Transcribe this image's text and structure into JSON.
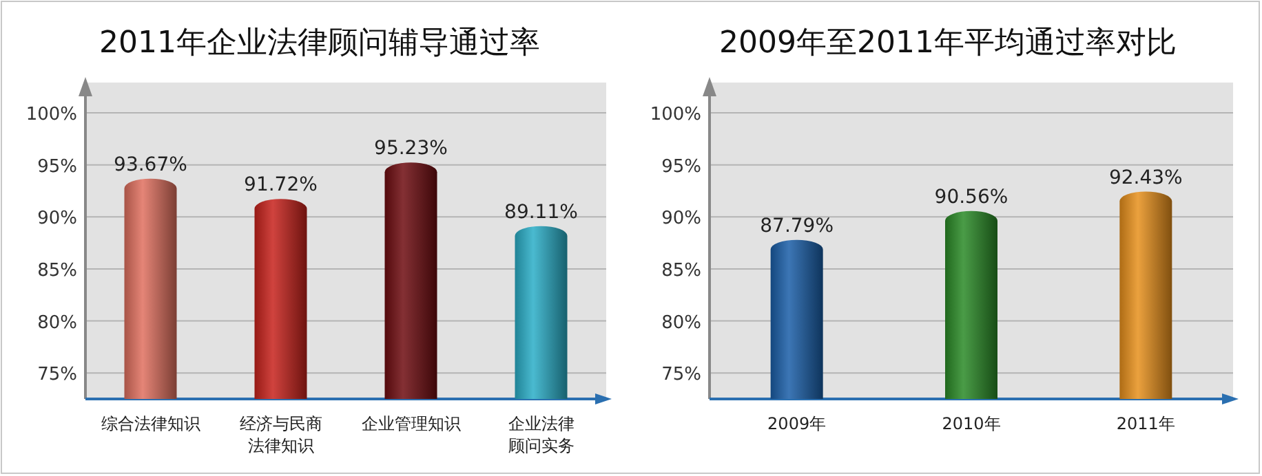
{
  "chart_data": [
    {
      "type": "bar",
      "title": "2011年企业法律顾问辅导通过率",
      "categories": [
        "综合法律知识",
        "经济与民商法律知识",
        "企业管理知识",
        "企业法律顾问实务"
      ],
      "values": [
        93.67,
        91.72,
        95.23,
        89.11
      ],
      "colors": [
        "#e0705f",
        "#c8221c",
        "#6e0c10",
        "#2aaec8"
      ],
      "value_labels": [
        "93.67%",
        "91.72%",
        "95.23%",
        "89.11%"
      ],
      "ylim": [
        72.5,
        100
      ],
      "yticks": [
        {
          "value": 75,
          "label": "75%"
        },
        {
          "value": 80,
          "label": "80%"
        },
        {
          "value": 85,
          "label": "85%"
        },
        {
          "value": 90,
          "label": "90%"
        },
        {
          "value": 95,
          "label": "95%"
        },
        {
          "value": 100,
          "label": "100%"
        }
      ],
      "grid": "y"
    },
    {
      "type": "bar",
      "title": "2009年至2011年平均通过率对比",
      "categories": [
        "2009年",
        "2010年",
        "2011年"
      ],
      "values": [
        87.79,
        90.56,
        92.43
      ],
      "colors": [
        "#1a5ea8",
        "#2a8a26",
        "#e8901c"
      ],
      "value_labels": [
        "87.79%",
        "90.56%",
        "92.43%"
      ],
      "ylim": [
        72.5,
        100
      ],
      "yticks": [
        {
          "value": 75,
          "label": "75%"
        },
        {
          "value": 80,
          "label": "80%"
        },
        {
          "value": 85,
          "label": "85%"
        },
        {
          "value": 90,
          "label": "90%"
        },
        {
          "value": 95,
          "label": "95%"
        },
        {
          "value": 100,
          "label": "100%"
        }
      ],
      "grid": "y"
    }
  ]
}
